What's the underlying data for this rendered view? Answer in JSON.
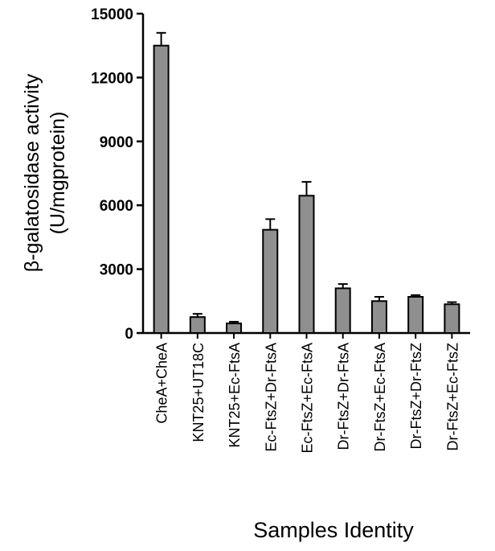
{
  "chart_data": {
    "type": "bar",
    "ylabel": [
      "β-galatosidase activity",
      "(U/mgprotein)"
    ],
    "xlabel": "Samples Identity",
    "categories": [
      "CheA+CheA",
      "KNT25+UT18C",
      "KNT25+Ec-FtsA",
      "Ec-FtsZ+Dr-FtsA",
      "Ec-FtsZ+Ec-FtsA",
      "Dr-FtsZ+Dr-FtsA",
      "Dr-FtsZ+Ec-FtsA",
      "Dr-FtsZ+Dr-FtsZ",
      "Dr-FtsZ+Ec-FtsZ"
    ],
    "series": [
      {
        "color": "#8f8f8f",
        "values": [
          13500,
          750,
          450,
          4850,
          6450,
          2100,
          1500,
          1700,
          1350
        ],
        "errors": [
          600,
          150,
          80,
          500,
          650,
          200,
          200,
          80,
          100
        ]
      }
    ],
    "ylim": [
      0,
      15000
    ],
    "yticks": [
      0,
      3000,
      6000,
      9000,
      12000,
      15000
    ]
  }
}
